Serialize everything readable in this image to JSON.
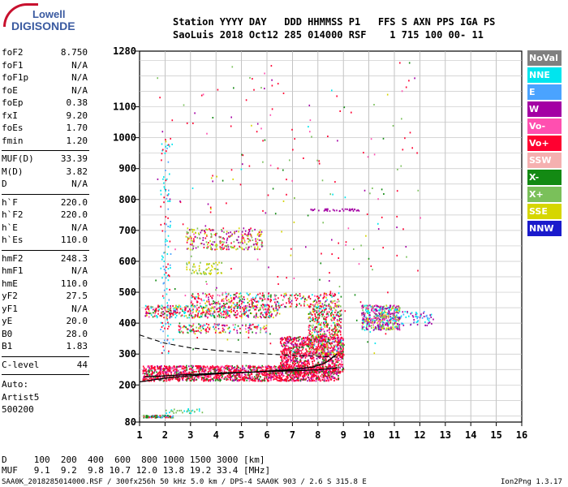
{
  "logo": {
    "line1": "Lowell",
    "line2": "DIGISONDE"
  },
  "header": {
    "line1": "Station YYYY DAY   DDD HHMMSS P1   FFS S AXN PPS IGA PS",
    "line2": "SaoLuis 2018 Oct12 285 014000 RSF    1 715 100 00- 11"
  },
  "params": {
    "group1": [
      {
        "name": "foF2",
        "value": "8.750"
      },
      {
        "name": "foF1",
        "value": "N/A"
      },
      {
        "name": "foF1p",
        "value": "N/A"
      },
      {
        "name": "foE",
        "value": "N/A"
      },
      {
        "name": "foEp",
        "value": "0.38"
      },
      {
        "name": "fxI",
        "value": "9.20"
      },
      {
        "name": "foEs",
        "value": "1.70"
      },
      {
        "name": "fmin",
        "value": "1.20"
      }
    ],
    "group2": [
      {
        "name": "MUF(D)",
        "value": "33.39"
      },
      {
        "name": "M(D)",
        "value": "3.82"
      },
      {
        "name": "D",
        "value": "N/A"
      }
    ],
    "group3": [
      {
        "name": "h`F",
        "value": "220.0"
      },
      {
        "name": "h`F2",
        "value": "220.0"
      },
      {
        "name": "h`E",
        "value": "N/A"
      },
      {
        "name": "h`Es",
        "value": "110.0"
      }
    ],
    "group4": [
      {
        "name": "hmF2",
        "value": "248.3"
      },
      {
        "name": "hmF1",
        "value": "N/A"
      },
      {
        "name": "hmE",
        "value": "110.0"
      },
      {
        "name": "yF2",
        "value": "27.5"
      },
      {
        "name": "yF1",
        "value": "N/A"
      },
      {
        "name": "yE",
        "value": "20.0"
      },
      {
        "name": "B0",
        "value": "28.0"
      },
      {
        "name": "B1",
        "value": "1.83"
      }
    ],
    "clevel": {
      "name": "C-level",
      "value": "44"
    },
    "auto_label": "Auto:",
    "artist": "Artist5",
    "code": "500200"
  },
  "legend": [
    {
      "label": "NoVal",
      "color": "#808080"
    },
    {
      "label": "NNE",
      "color": "#00e5ee"
    },
    {
      "label": "E",
      "color": "#4aa3ff"
    },
    {
      "label": "W",
      "color": "#a400a4"
    },
    {
      "label": "Vo-",
      "color": "#ff4fb0"
    },
    {
      "label": "Vo+",
      "color": "#ff0030"
    },
    {
      "label": "SSW",
      "color": "#f5b0b0"
    },
    {
      "label": "X-",
      "color": "#138a13"
    },
    {
      "label": "X+",
      "color": "#7ac05a"
    },
    {
      "label": "SSE",
      "color": "#d6d600"
    },
    {
      "label": "NNW",
      "color": "#1a1acc"
    }
  ],
  "chart_data": {
    "type": "scatter",
    "x_range": [
      1,
      16
    ],
    "y_range": [
      80,
      1280
    ],
    "x_ticks": [
      "1",
      "2",
      "3",
      "4",
      "5",
      "6",
      "7",
      "8",
      "9",
      "10",
      "11",
      "12",
      "13",
      "14",
      "15",
      "16"
    ],
    "y_ticks": [
      {
        "v": 80,
        "label": "80"
      },
      {
        "v": 200,
        "label": "200"
      },
      {
        "v": 300,
        "label": "300"
      },
      {
        "v": 400,
        "label": "400"
      },
      {
        "v": 500,
        "label": "500"
      },
      {
        "v": 600,
        "label": "600"
      },
      {
        "v": 700,
        "label": "700"
      },
      {
        "v": 800,
        "label": "800"
      },
      {
        "v": 900,
        "label": "900"
      },
      {
        "v": 1000,
        "label": "1000"
      },
      {
        "v": 1100,
        "label": "1100"
      },
      {
        "v": 1280,
        "label": "1280"
      }
    ],
    "grid": true,
    "trace_lower": [
      [
        1.0,
        210
      ],
      [
        2.0,
        222
      ],
      [
        3.0,
        230
      ],
      [
        4.0,
        236
      ],
      [
        5.0,
        240
      ],
      [
        6.0,
        244
      ],
      [
        7.0,
        246
      ],
      [
        8.0,
        249
      ],
      [
        8.75,
        255
      ]
    ],
    "trace_upper": [
      [
        1.2,
        226
      ],
      [
        2.5,
        232
      ],
      [
        4.0,
        238
      ],
      [
        5.5,
        242
      ],
      [
        7.0,
        250
      ],
      [
        7.8,
        258
      ],
      [
        8.3,
        272
      ],
      [
        8.75,
        300
      ]
    ],
    "profile_dashed": [
      [
        1.0,
        362
      ],
      [
        1.5,
        348
      ],
      [
        2.0,
        335
      ],
      [
        3.0,
        320
      ],
      [
        4.0,
        312
      ],
      [
        5.0,
        305
      ],
      [
        6.0,
        300
      ],
      [
        7.0,
        296
      ],
      [
        8.0,
        293
      ],
      [
        8.75,
        290
      ]
    ]
  },
  "distance_table": {
    "d_row": "D     100  200  400  600  800 1000 1500 3000 [km]",
    "muf_row": "MUF   9.1  9.2  9.8 10.7 12.0 13.8 19.2 33.4 [MHz]"
  },
  "footer": {
    "left": "SAA0K_2018285014000.RSF / 300fx256h 50 kHz 5.0 km / DPS-4 SAA0K 903 / 2.6 S 315.8 E",
    "right": "Ion2Png 1.3.17"
  }
}
